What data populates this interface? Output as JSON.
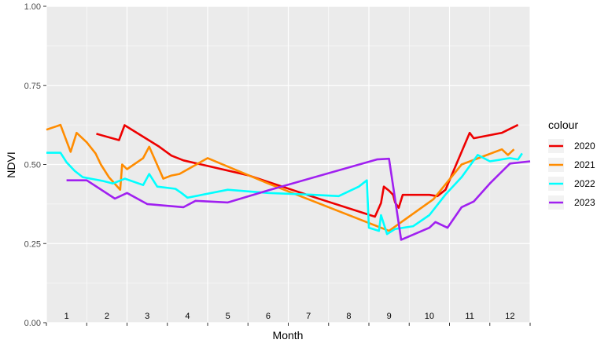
{
  "chart_data": {
    "type": "line",
    "xlabel": "Month",
    "ylabel": "NDVI",
    "xlim": [
      0.5,
      12.5
    ],
    "ylim": [
      0,
      1
    ],
    "yticks": [
      "0.00",
      "0.25",
      "0.50",
      "0.75",
      "1.00"
    ],
    "month_labels": [
      "1",
      "2",
      "3",
      "4",
      "5",
      "6",
      "7",
      "8",
      "9",
      "10",
      "11",
      "12"
    ],
    "grid": true,
    "legend_title": "colour",
    "legend_position": "right",
    "series": [
      {
        "name": "2020",
        "color": "#ee0000",
        "x": [
          1.74,
          2.3,
          2.44,
          3.3,
          3.6,
          3.9,
          5.5,
          7.3,
          8.65,
          8.8,
          8.87,
          9.0,
          9.1,
          9.15,
          9.24,
          9.34,
          10.0,
          10.2,
          10.4,
          10.6,
          11.0,
          11.1,
          11.8,
          12.2
        ],
        "y": [
          0.597,
          0.577,
          0.624,
          0.556,
          0.528,
          0.513,
          0.466,
          0.39,
          0.335,
          0.378,
          0.43,
          0.417,
          0.404,
          0.38,
          0.363,
          0.404,
          0.404,
          0.4,
          0.42,
          0.48,
          0.6,
          0.583,
          0.6,
          0.625
        ]
      },
      {
        "name": "2021",
        "color": "#ff8c00",
        "x": [
          0.5,
          0.85,
          1.1,
          1.25,
          1.5,
          1.72,
          1.85,
          2.05,
          2.33,
          2.38,
          2.5,
          2.9,
          3.05,
          3.4,
          3.6,
          3.8,
          4.5,
          6.0,
          8.7,
          9.0,
          10.1,
          10.8,
          11.8,
          11.95,
          12.1
        ],
        "y": [
          0.61,
          0.625,
          0.54,
          0.6,
          0.57,
          0.535,
          0.5,
          0.46,
          0.42,
          0.5,
          0.485,
          0.52,
          0.556,
          0.455,
          0.465,
          0.47,
          0.52,
          0.44,
          0.305,
          0.29,
          0.39,
          0.5,
          0.548,
          0.53,
          0.548
        ]
      },
      {
        "name": "2022",
        "color": "#00ffff",
        "x": [
          0.5,
          0.85,
          1.0,
          1.2,
          1.4,
          1.6,
          1.9,
          2.15,
          2.45,
          2.9,
          3.05,
          3.25,
          3.7,
          3.85,
          4.0,
          5.0,
          6.0,
          7.0,
          7.75,
          8.25,
          8.45,
          8.5,
          8.55,
          8.75,
          8.8,
          8.95,
          9.15,
          9.6,
          10.0,
          10.4,
          10.8,
          11.2,
          11.5,
          12.0,
          12.2,
          12.3
        ],
        "y": [
          0.537,
          0.537,
          0.507,
          0.48,
          0.46,
          0.455,
          0.448,
          0.44,
          0.455,
          0.435,
          0.47,
          0.43,
          0.423,
          0.41,
          0.395,
          0.42,
          0.41,
          0.405,
          0.4,
          0.43,
          0.45,
          0.3,
          0.298,
          0.29,
          0.34,
          0.28,
          0.296,
          0.305,
          0.34,
          0.405,
          0.46,
          0.53,
          0.51,
          0.52,
          0.516,
          0.535
        ]
      },
      {
        "name": "2023",
        "color": "#a020f0",
        "x": [
          1.0,
          1.5,
          2.2,
          2.5,
          3.0,
          3.9,
          4.2,
          5.0,
          6.0,
          8.7,
          9.0,
          9.3,
          10.0,
          10.15,
          10.45,
          10.8,
          11.1,
          11.5,
          12.0,
          12.5
        ],
        "y": [
          0.45,
          0.45,
          0.392,
          0.41,
          0.375,
          0.365,
          0.385,
          0.38,
          0.418,
          0.516,
          0.518,
          0.262,
          0.3,
          0.318,
          0.3,
          0.365,
          0.383,
          0.44,
          0.503,
          0.51
        ]
      }
    ]
  }
}
